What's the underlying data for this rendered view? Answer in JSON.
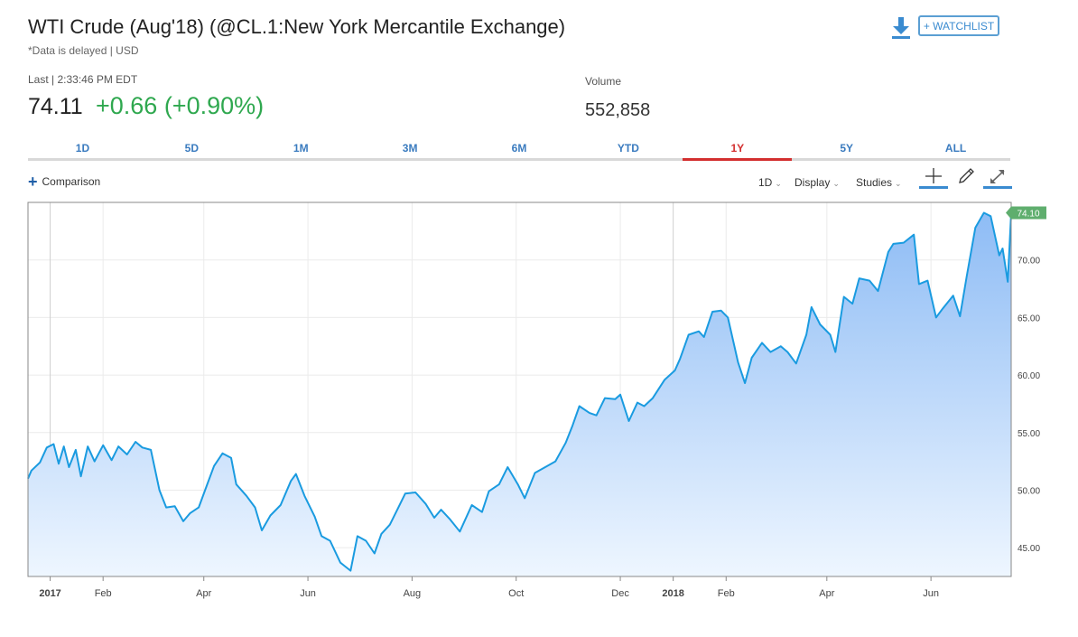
{
  "header": {
    "title": "WTI Crude (Aug'18) (@CL.1:New York Mercantile Exchange)",
    "subtitle": "*Data is delayed | USD",
    "watchlist_label": "+ WATCHLIST"
  },
  "quote": {
    "last_label": "Last | 2:33:46 PM EDT",
    "last_price": "74.11",
    "change": "+0.66 (+0.90%)",
    "volume_label": "Volume",
    "volume_value": "552,858"
  },
  "tabs": [
    {
      "label": "1D"
    },
    {
      "label": "5D"
    },
    {
      "label": "1M"
    },
    {
      "label": "3M"
    },
    {
      "label": "6M"
    },
    {
      "label": "YTD"
    },
    {
      "label": "1Y",
      "active": true
    },
    {
      "label": "5Y"
    },
    {
      "label": "ALL"
    }
  ],
  "toolbar": {
    "comparison_label": "Comparison",
    "interval_label": "1D",
    "display_label": "Display",
    "studies_label": "Studies"
  },
  "icons": {
    "download": "download-icon",
    "crosshair": "crosshair-icon",
    "draw": "pencil-icon",
    "expand": "expand-icon"
  },
  "colors": {
    "line": "#1a9be0",
    "area_top": "#8ebcf5",
    "area_bottom": "#eef6ff",
    "up": "#2fa84f",
    "active_tab": "#d32f2f",
    "link": "#3a7bbf",
    "last_badge": "#5fae6e"
  },
  "chart_data": {
    "type": "area",
    "y_range": [
      42.5,
      75.0
    ],
    "y_ticks": [
      45,
      50,
      55,
      60,
      65,
      70
    ],
    "y_tick_labels": [
      "45.00",
      "50.00",
      "55.00",
      "60.00",
      "65.00",
      "70.00"
    ],
    "x_range": [
      "2016-12-19",
      "2018-07-18"
    ],
    "x_ticks": [
      {
        "date": "2017-01-01",
        "label": "2017",
        "bold": true
      },
      {
        "date": "2017-02-01",
        "label": "Feb"
      },
      {
        "date": "2017-04-01",
        "label": "Apr"
      },
      {
        "date": "2017-06-01",
        "label": "Jun"
      },
      {
        "date": "2017-08-01",
        "label": "Aug"
      },
      {
        "date": "2017-10-01",
        "label": "Oct"
      },
      {
        "date": "2017-12-01",
        "label": "Dec"
      },
      {
        "date": "2018-01-01",
        "label": "2018",
        "bold": true
      },
      {
        "date": "2018-02-01",
        "label": "Feb"
      },
      {
        "date": "2018-04-01",
        "label": "Apr"
      },
      {
        "date": "2018-06-01",
        "label": "Jun"
      }
    ],
    "last_value_label": "74.10",
    "series": [
      {
        "points": [
          [
            "2016-12-19",
            51.0
          ],
          [
            "2016-12-21",
            51.7
          ],
          [
            "2016-12-26",
            52.4
          ],
          [
            "2016-12-30",
            53.7
          ],
          [
            "2017-01-03",
            54.0
          ],
          [
            "2017-01-06",
            52.3
          ],
          [
            "2017-01-09",
            53.8
          ],
          [
            "2017-01-12",
            52.0
          ],
          [
            "2017-01-16",
            53.5
          ],
          [
            "2017-01-19",
            51.2
          ],
          [
            "2017-01-23",
            53.8
          ],
          [
            "2017-01-27",
            52.5
          ],
          [
            "2017-02-01",
            53.9
          ],
          [
            "2017-02-06",
            52.6
          ],
          [
            "2017-02-10",
            53.8
          ],
          [
            "2017-02-15",
            53.1
          ],
          [
            "2017-02-20",
            54.2
          ],
          [
            "2017-02-24",
            53.7
          ],
          [
            "2017-03-01",
            53.5
          ],
          [
            "2017-03-06",
            50.0
          ],
          [
            "2017-03-10",
            48.5
          ],
          [
            "2017-03-15",
            48.6
          ],
          [
            "2017-03-20",
            47.3
          ],
          [
            "2017-03-24",
            48.0
          ],
          [
            "2017-03-29",
            48.5
          ],
          [
            "2017-04-03",
            50.5
          ],
          [
            "2017-04-07",
            52.1
          ],
          [
            "2017-04-12",
            53.2
          ],
          [
            "2017-04-17",
            52.8
          ],
          [
            "2017-04-20",
            50.5
          ],
          [
            "2017-04-26",
            49.5
          ],
          [
            "2017-05-01",
            48.5
          ],
          [
            "2017-05-05",
            46.5
          ],
          [
            "2017-05-10",
            47.8
          ],
          [
            "2017-05-16",
            48.7
          ],
          [
            "2017-05-22",
            50.8
          ],
          [
            "2017-05-25",
            51.4
          ],
          [
            "2017-05-30",
            49.5
          ],
          [
            "2017-06-05",
            47.7
          ],
          [
            "2017-06-09",
            46.0
          ],
          [
            "2017-06-14",
            45.6
          ],
          [
            "2017-06-20",
            43.7
          ],
          [
            "2017-06-26",
            43.0
          ],
          [
            "2017-06-30",
            46.0
          ],
          [
            "2017-07-05",
            45.6
          ],
          [
            "2017-07-10",
            44.5
          ],
          [
            "2017-07-14",
            46.2
          ],
          [
            "2017-07-19",
            47.0
          ],
          [
            "2017-07-24",
            48.5
          ],
          [
            "2017-07-28",
            49.7
          ],
          [
            "2017-08-03",
            49.8
          ],
          [
            "2017-08-09",
            48.8
          ],
          [
            "2017-08-14",
            47.6
          ],
          [
            "2017-08-18",
            48.3
          ],
          [
            "2017-08-23",
            47.5
          ],
          [
            "2017-08-29",
            46.4
          ],
          [
            "2017-09-05",
            48.7
          ],
          [
            "2017-09-11",
            48.1
          ],
          [
            "2017-09-15",
            49.9
          ],
          [
            "2017-09-21",
            50.5
          ],
          [
            "2017-09-26",
            52.0
          ],
          [
            "2017-10-02",
            50.5
          ],
          [
            "2017-10-06",
            49.3
          ],
          [
            "2017-10-12",
            51.5
          ],
          [
            "2017-10-18",
            52.0
          ],
          [
            "2017-10-24",
            52.5
          ],
          [
            "2017-10-30",
            54.1
          ],
          [
            "2017-11-03",
            55.6
          ],
          [
            "2017-11-07",
            57.3
          ],
          [
            "2017-11-13",
            56.7
          ],
          [
            "2017-11-17",
            56.5
          ],
          [
            "2017-11-22",
            58.0
          ],
          [
            "2017-11-28",
            57.9
          ],
          [
            "2017-12-01",
            58.3
          ],
          [
            "2017-12-06",
            56.0
          ],
          [
            "2017-12-11",
            57.6
          ],
          [
            "2017-12-15",
            57.3
          ],
          [
            "2017-12-20",
            58.0
          ],
          [
            "2017-12-27",
            59.6
          ],
          [
            "2018-01-02",
            60.4
          ],
          [
            "2018-01-05",
            61.4
          ],
          [
            "2018-01-10",
            63.5
          ],
          [
            "2018-01-16",
            63.8
          ],
          [
            "2018-01-19",
            63.3
          ],
          [
            "2018-01-24",
            65.5
          ],
          [
            "2018-01-29",
            65.6
          ],
          [
            "2018-02-02",
            65.0
          ],
          [
            "2018-02-08",
            61.1
          ],
          [
            "2018-02-12",
            59.3
          ],
          [
            "2018-02-16",
            61.5
          ],
          [
            "2018-02-22",
            62.8
          ],
          [
            "2018-02-27",
            62.0
          ],
          [
            "2018-03-05",
            62.5
          ],
          [
            "2018-03-09",
            62.0
          ],
          [
            "2018-03-14",
            61.0
          ],
          [
            "2018-03-20",
            63.5
          ],
          [
            "2018-03-23",
            65.9
          ],
          [
            "2018-03-28",
            64.4
          ],
          [
            "2018-04-03",
            63.5
          ],
          [
            "2018-04-06",
            62.0
          ],
          [
            "2018-04-11",
            66.8
          ],
          [
            "2018-04-16",
            66.2
          ],
          [
            "2018-04-20",
            68.4
          ],
          [
            "2018-04-26",
            68.2
          ],
          [
            "2018-05-01",
            67.3
          ],
          [
            "2018-05-07",
            70.7
          ],
          [
            "2018-05-10",
            71.4
          ],
          [
            "2018-05-16",
            71.5
          ],
          [
            "2018-05-22",
            72.2
          ],
          [
            "2018-05-25",
            67.9
          ],
          [
            "2018-05-30",
            68.2
          ],
          [
            "2018-06-04",
            65.0
          ],
          [
            "2018-06-08",
            65.8
          ],
          [
            "2018-06-14",
            66.9
          ],
          [
            "2018-06-18",
            65.1
          ],
          [
            "2018-06-22",
            68.6
          ],
          [
            "2018-06-27",
            72.8
          ],
          [
            "2018-07-02",
            74.1
          ],
          [
            "2018-07-06",
            73.8
          ],
          [
            "2018-07-11",
            70.4
          ],
          [
            "2018-07-13",
            71.0
          ],
          [
            "2018-07-16",
            68.1
          ],
          [
            "2018-07-18",
            74.1
          ]
        ]
      }
    ]
  }
}
